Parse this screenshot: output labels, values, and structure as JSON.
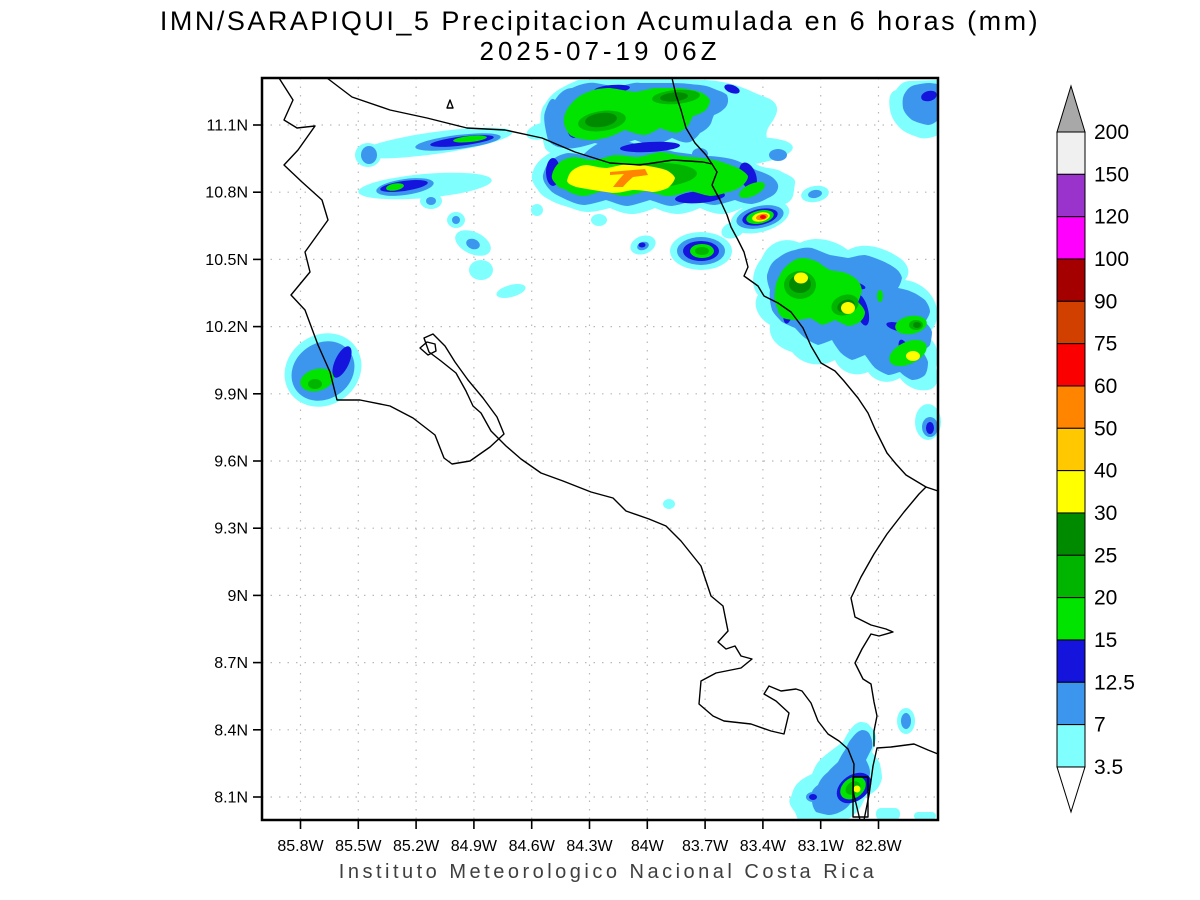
{
  "title": {
    "line1": "IMN/SARAPIQUI_5 Precipitacion Acumulada en 6 horas (mm)",
    "line2": "2025-07-19 06Z"
  },
  "footer": "Instituto Meteorologico Nacional Costa Rica",
  "map": {
    "lat_tick_labels": [
      "11.1N",
      "10.8N",
      "10.5N",
      "10.2N",
      "9.9N",
      "9.6N",
      "9.3N",
      "9N",
      "8.7N",
      "8.4N",
      "8.1N"
    ],
    "lon_tick_labels": [
      "85.8W",
      "85.5W",
      "85.2W",
      "84.9W",
      "84.6W",
      "84.3W",
      "84W",
      "83.7W",
      "83.4W",
      "83.1W",
      "82.8W"
    ]
  },
  "colorbar": {
    "boundary_labels": [
      "200",
      "150",
      "120",
      "100",
      "90",
      "75",
      "60",
      "50",
      "40",
      "30",
      "25",
      "20",
      "15",
      "12.5",
      "7",
      "3.5"
    ],
    "cell_colors": [
      "#f0f0f0",
      "#9933cc",
      "#ff00ff",
      "#a40000",
      "#d24000",
      "#fa0000",
      "#ff8400",
      "#ffc800",
      "#ffff00",
      "#008a00",
      "#00b400",
      "#00e400",
      "#1414dc",
      "#3c96ee",
      "#80ffff"
    ],
    "arrow_top_color": "#a8a8a8",
    "arrow_bottom_color": "#ffffff"
  },
  "palette": {
    "p3_5": "#80ffff",
    "p7": "#3c96ee",
    "p12_5": "#1414dc",
    "p15": "#00e400",
    "p20": "#00b400",
    "p25": "#008a00",
    "p30": "#ffff00",
    "p50": "#ff8400",
    "p60": "#fa0000"
  }
}
